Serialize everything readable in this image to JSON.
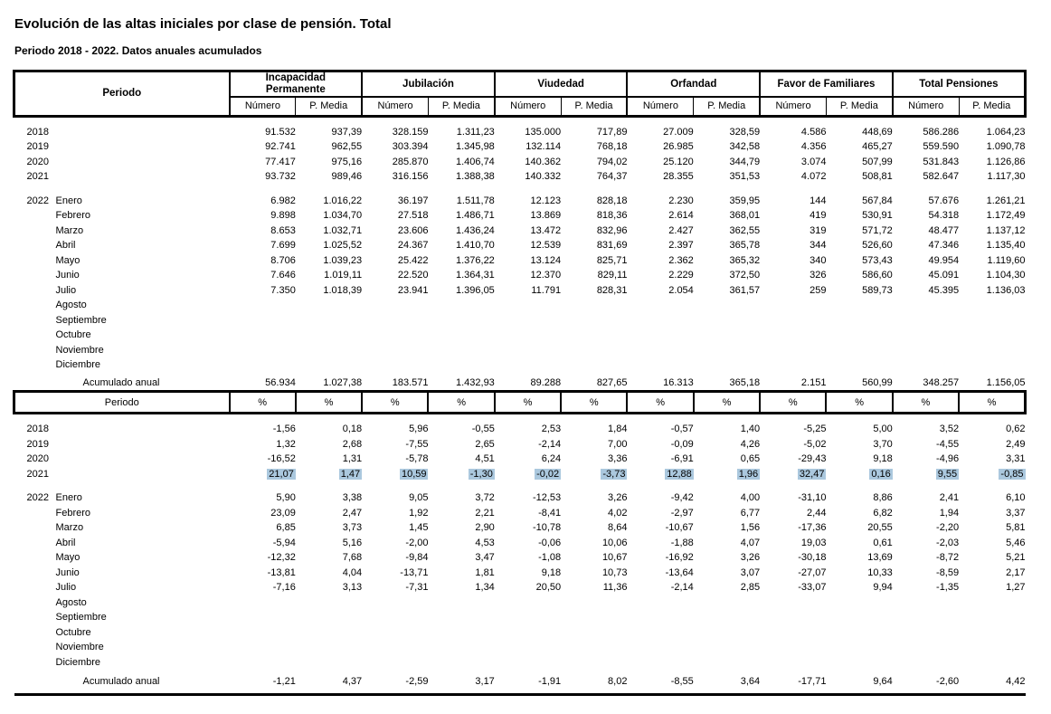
{
  "title": "Evolución de las altas iniciales por clase de pensión. Total",
  "subtitle": "Periodo 2018 - 2022. Datos anuales acumulados",
  "table": {
    "periodo_label": "Periodo",
    "groups": [
      "Incapacidad\nPermanente",
      "Jubilación",
      "Viudedad",
      "Orfandad",
      "Favor de Familiares",
      "Total Pensiones"
    ],
    "sub": {
      "numero": "Número",
      "media": "P. Media"
    },
    "percent_header": {
      "periodo_label": "Periodo",
      "symbol": "%"
    },
    "acumulado_label": "Acumulado anual",
    "highlight_color": "#abc8de",
    "sections": {
      "values": {
        "rows": [
          {
            "year": "2018",
            "month": "",
            "values": [
              "91.532",
              "937,39",
              "328.159",
              "1.311,23",
              "135.000",
              "717,89",
              "27.009",
              "328,59",
              "4.586",
              "448,69",
              "586.286",
              "1.064,23"
            ]
          },
          {
            "year": "2019",
            "month": "",
            "values": [
              "92.741",
              "962,55",
              "303.394",
              "1.345,98",
              "132.114",
              "768,18",
              "26.985",
              "342,58",
              "4.356",
              "465,27",
              "559.590",
              "1.090,78"
            ]
          },
          {
            "year": "2020",
            "month": "",
            "values": [
              "77.417",
              "975,16",
              "285.870",
              "1.406,74",
              "140.362",
              "794,02",
              "25.120",
              "344,79",
              "3.074",
              "507,99",
              "531.843",
              "1.126,86"
            ]
          },
          {
            "year": "2021",
            "month": "",
            "values": [
              "93.732",
              "989,46",
              "316.156",
              "1.388,38",
              "140.332",
              "764,37",
              "28.355",
              "351,53",
              "4.072",
              "508,81",
              "582.647",
              "1.117,30"
            ]
          },
          {
            "year": "2022",
            "month": "Enero",
            "gap": true,
            "values": [
              "6.982",
              "1.016,22",
              "36.197",
              "1.511,78",
              "12.123",
              "828,18",
              "2.230",
              "359,95",
              "144",
              "567,84",
              "57.676",
              "1.261,21"
            ]
          },
          {
            "year": "",
            "month": "Febrero",
            "values": [
              "9.898",
              "1.034,70",
              "27.518",
              "1.486,71",
              "13.869",
              "818,36",
              "2.614",
              "368,01",
              "419",
              "530,91",
              "54.318",
              "1.172,49"
            ]
          },
          {
            "year": "",
            "month": "Marzo",
            "values": [
              "8.653",
              "1.032,71",
              "23.606",
              "1.436,24",
              "13.472",
              "832,96",
              "2.427",
              "362,55",
              "319",
              "571,72",
              "48.477",
              "1.137,12"
            ]
          },
          {
            "year": "",
            "month": "Abril",
            "values": [
              "7.699",
              "1.025,52",
              "24.367",
              "1.410,70",
              "12.539",
              "831,69",
              "2.397",
              "365,78",
              "344",
              "526,60",
              "47.346",
              "1.135,40"
            ]
          },
          {
            "year": "",
            "month": "Mayo",
            "values": [
              "8.706",
              "1.039,23",
              "25.422",
              "1.376,22",
              "13.124",
              "825,71",
              "2.362",
              "365,32",
              "340",
              "573,43",
              "49.954",
              "1.119,60"
            ]
          },
          {
            "year": "",
            "month": "Junio",
            "values": [
              "7.646",
              "1.019,11",
              "22.520",
              "1.364,31",
              "12.370",
              "829,11",
              "2.229",
              "372,50",
              "326",
              "586,60",
              "45.091",
              "1.104,30"
            ]
          },
          {
            "year": "",
            "month": "Julio",
            "values": [
              "7.350",
              "1.018,39",
              "23.941",
              "1.396,05",
              "11.791",
              "828,31",
              "2.054",
              "361,57",
              "259",
              "589,73",
              "45.395",
              "1.136,03"
            ]
          },
          {
            "year": "",
            "month": "Agosto",
            "values": []
          },
          {
            "year": "",
            "month": "Septiembre",
            "values": []
          },
          {
            "year": "",
            "month": "Octubre",
            "values": []
          },
          {
            "year": "",
            "month": "Noviembre",
            "values": []
          },
          {
            "year": "",
            "month": "Diciembre",
            "values": []
          },
          {
            "acumulado": true,
            "gap2": true,
            "values": [
              "56.934",
              "1.027,38",
              "183.571",
              "1.432,93",
              "89.288",
              "827,65",
              "16.313",
              "365,18",
              "2.151",
              "560,99",
              "348.257",
              "1.156,05"
            ]
          }
        ]
      },
      "percent": {
        "rows": [
          {
            "year": "2018",
            "month": "",
            "values": [
              "-1,56",
              "0,18",
              "5,96",
              "-0,55",
              "2,53",
              "1,84",
              "-0,57",
              "1,40",
              "-5,25",
              "5,00",
              "3,52",
              "0,62"
            ]
          },
          {
            "year": "2019",
            "month": "",
            "values": [
              "1,32",
              "2,68",
              "-7,55",
              "2,65",
              "-2,14",
              "7,00",
              "-0,09",
              "4,26",
              "-5,02",
              "3,70",
              "-4,55",
              "2,49"
            ]
          },
          {
            "year": "2020",
            "month": "",
            "values": [
              "-16,52",
              "1,31",
              "-5,78",
              "4,51",
              "6,24",
              "3,36",
              "-6,91",
              "0,65",
              "-29,43",
              "9,18",
              "-4,96",
              "3,31"
            ]
          },
          {
            "year": "2021",
            "month": "",
            "highlight": true,
            "values": [
              "21,07",
              "1,47",
              "10,59",
              "-1,30",
              "-0,02",
              "-3,73",
              "12,88",
              "1,96",
              "32,47",
              "0,16",
              "9,55",
              "-0,85"
            ]
          },
          {
            "year": "2022",
            "month": "Enero",
            "gap": true,
            "values": [
              "5,90",
              "3,38",
              "9,05",
              "3,72",
              "-12,53",
              "3,26",
              "-9,42",
              "4,00",
              "-31,10",
              "8,86",
              "2,41",
              "6,10"
            ]
          },
          {
            "year": "",
            "month": "Febrero",
            "values": [
              "23,09",
              "2,47",
              "1,92",
              "2,21",
              "-8,41",
              "4,02",
              "-2,97",
              "6,77",
              "2,44",
              "6,82",
              "1,94",
              "3,37"
            ]
          },
          {
            "year": "",
            "month": "Marzo",
            "values": [
              "6,85",
              "3,73",
              "1,45",
              "2,90",
              "-10,78",
              "8,64",
              "-10,67",
              "1,56",
              "-17,36",
              "20,55",
              "-2,20",
              "5,81"
            ]
          },
          {
            "year": "",
            "month": "Abril",
            "values": [
              "-5,94",
              "5,16",
              "-2,00",
              "4,53",
              "-0,06",
              "10,06",
              "-1,88",
              "4,07",
              "19,03",
              "0,61",
              "-2,03",
              "5,46"
            ]
          },
          {
            "year": "",
            "month": "Mayo",
            "values": [
              "-12,32",
              "7,68",
              "-9,84",
              "3,47",
              "-1,08",
              "10,67",
              "-16,92",
              "3,26",
              "-30,18",
              "13,69",
              "-8,72",
              "5,21"
            ]
          },
          {
            "year": "",
            "month": "Junio",
            "values": [
              "-13,81",
              "4,04",
              "-13,71",
              "1,81",
              "9,18",
              "10,73",
              "-13,64",
              "3,07",
              "-27,07",
              "10,33",
              "-8,59",
              "2,17"
            ]
          },
          {
            "year": "",
            "month": "Julio",
            "values": [
              "-7,16",
              "3,13",
              "-7,31",
              "1,34",
              "20,50",
              "11,36",
              "-2,14",
              "2,85",
              "-33,07",
              "9,94",
              "-1,35",
              "1,27"
            ]
          },
          {
            "year": "",
            "month": "Agosto",
            "values": []
          },
          {
            "year": "",
            "month": "Septiembre",
            "values": []
          },
          {
            "year": "",
            "month": "Octubre",
            "values": []
          },
          {
            "year": "",
            "month": "Noviembre",
            "values": []
          },
          {
            "year": "",
            "month": "Diciembre",
            "values": []
          },
          {
            "acumulado": true,
            "gap2": true,
            "values": [
              "-1,21",
              "4,37",
              "-2,59",
              "3,17",
              "-1,91",
              "8,02",
              "-8,55",
              "3,64",
              "-17,71",
              "9,64",
              "-2,60",
              "4,42"
            ]
          }
        ]
      }
    }
  }
}
